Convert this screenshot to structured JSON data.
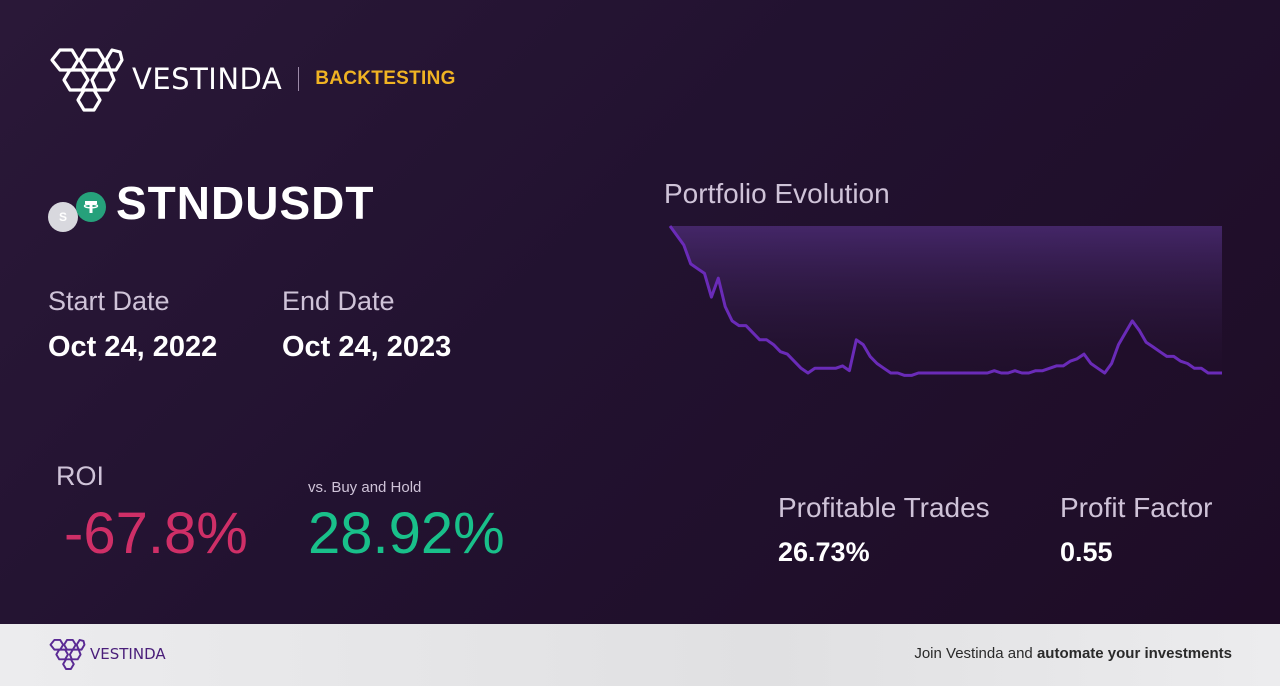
{
  "brand": {
    "name": "VESTINDA",
    "tag": "BACKTESTING"
  },
  "pair": {
    "name": "STNDUSDT",
    "base_icon_letter": "S",
    "quote_icon": "tether-icon"
  },
  "dates": {
    "start_label": "Start Date",
    "start_value": "Oct 24, 2022",
    "end_label": "End Date",
    "end_value": "Oct 24, 2023"
  },
  "roi": {
    "label": "ROI",
    "value": "-67.8%",
    "bh_label": "vs. Buy and Hold",
    "bh_value": "28.92%"
  },
  "chart": {
    "title": "Portfolio Evolution"
  },
  "stats": {
    "profitable_label": "Profitable Trades",
    "profitable_value": "26.73%",
    "factor_label": "Profit Factor",
    "factor_value": "0.55"
  },
  "footer": {
    "name": "VESTINDA",
    "cta_prefix": "Join Vestinda and ",
    "cta_bold": "automate your investments"
  },
  "colors": {
    "accent": "#f0b323",
    "negative": "#cf2f67",
    "positive": "#19c08a",
    "line": "#6a2bb8"
  },
  "chart_data": {
    "type": "area",
    "title": "Portfolio Evolution",
    "x": [
      0,
      1,
      2,
      3,
      4,
      5,
      6,
      7,
      8,
      9,
      10,
      11,
      12,
      13,
      14,
      15,
      16,
      17,
      18,
      19,
      20,
      21,
      22,
      23,
      24,
      25,
      26,
      27,
      28,
      29,
      30,
      31,
      32,
      33,
      34,
      35,
      36,
      37,
      38,
      39,
      40,
      41,
      42,
      43,
      44,
      45,
      46,
      47,
      48,
      49,
      50,
      51,
      52,
      53,
      54,
      55,
      56,
      57,
      58,
      59,
      60,
      61,
      62,
      63,
      64,
      65,
      66,
      67,
      68,
      69,
      70,
      71,
      72,
      73,
      74,
      75,
      76,
      77,
      78,
      79,
      80
    ],
    "values": [
      100,
      96,
      92,
      84,
      82,
      80,
      70,
      78,
      66,
      60,
      58,
      58,
      55,
      52,
      52,
      50,
      47,
      46,
      43,
      40,
      38,
      40,
      40,
      40,
      40,
      41,
      39,
      52,
      50,
      45,
      42,
      40,
      38,
      38,
      37,
      37,
      38,
      38,
      38,
      38,
      38,
      38,
      38,
      38,
      38,
      38,
      38,
      39,
      38,
      38,
      39,
      38,
      38,
      39,
      39,
      40,
      41,
      41,
      43,
      44,
      46,
      42,
      40,
      38,
      42,
      50,
      55,
      60,
      56,
      51,
      49,
      47,
      45,
      45,
      43,
      42,
      40,
      40,
      38,
      38,
      38
    ],
    "ylim": [
      30,
      100
    ],
    "grid": false,
    "legend": "none"
  }
}
